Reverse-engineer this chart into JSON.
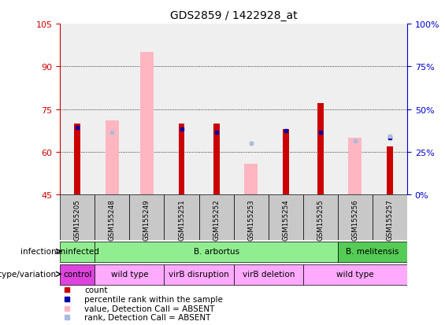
{
  "title": "GDS2859 / 1422928_at",
  "samples": [
    "GSM155205",
    "GSM155248",
    "GSM155249",
    "GSM155251",
    "GSM155252",
    "GSM155253",
    "GSM155254",
    "GSM155255",
    "GSM155256",
    "GSM155257"
  ],
  "ylim": [
    45,
    105
  ],
  "yticks": [
    45,
    60,
    75,
    90,
    105
  ],
  "y2labels": [
    "0%",
    "25%",
    "50%",
    "75%",
    "100%"
  ],
  "y2_vals": [
    45,
    60,
    75,
    90,
    105
  ],
  "red_bars": [
    70,
    0,
    0,
    70,
    70,
    0,
    68,
    77,
    0,
    62
  ],
  "pink_bars": [
    0,
    71,
    95,
    0,
    0,
    56,
    0,
    0,
    65,
    0
  ],
  "blue_squares": [
    68.5,
    0,
    0,
    68,
    67,
    0,
    67.5,
    67,
    0,
    65
  ],
  "light_blue_squares": [
    0,
    67,
    0,
    0,
    0,
    63,
    0,
    0,
    64,
    65.5
  ],
  "infection_groups": [
    {
      "label": "uninfected",
      "start": 0,
      "end": 1,
      "color": "#90EE90"
    },
    {
      "label": "B. arbortus",
      "start": 1,
      "end": 8,
      "color": "#90EE90"
    },
    {
      "label": "B. melitensis",
      "start": 8,
      "end": 10,
      "color": "#55CC55"
    }
  ],
  "genotype_groups": [
    {
      "label": "control",
      "start": 0,
      "end": 1,
      "color": "#DD44DD"
    },
    {
      "label": "wild type",
      "start": 1,
      "end": 3,
      "color": "#FFAAFF"
    },
    {
      "label": "virB disruption",
      "start": 3,
      "end": 5,
      "color": "#FFAAFF"
    },
    {
      "label": "virB deletion",
      "start": 5,
      "end": 7,
      "color": "#FFAAFF"
    },
    {
      "label": "wild type",
      "start": 7,
      "end": 10,
      "color": "#FFAAFF"
    }
  ],
  "red_color": "#CC0000",
  "pink_color": "#FFB6C1",
  "blue_color": "#0000AA",
  "light_blue_color": "#AABBDD",
  "left_axis_color": "#CC0000",
  "right_axis_color": "#0000CC",
  "legend_items": [
    {
      "color": "#CC0000",
      "label": "count"
    },
    {
      "color": "#0000AA",
      "label": "percentile rank within the sample"
    },
    {
      "color": "#FFB6C1",
      "label": "value, Detection Call = ABSENT"
    },
    {
      "color": "#AABBDD",
      "label": "rank, Detection Call = ABSENT"
    }
  ]
}
